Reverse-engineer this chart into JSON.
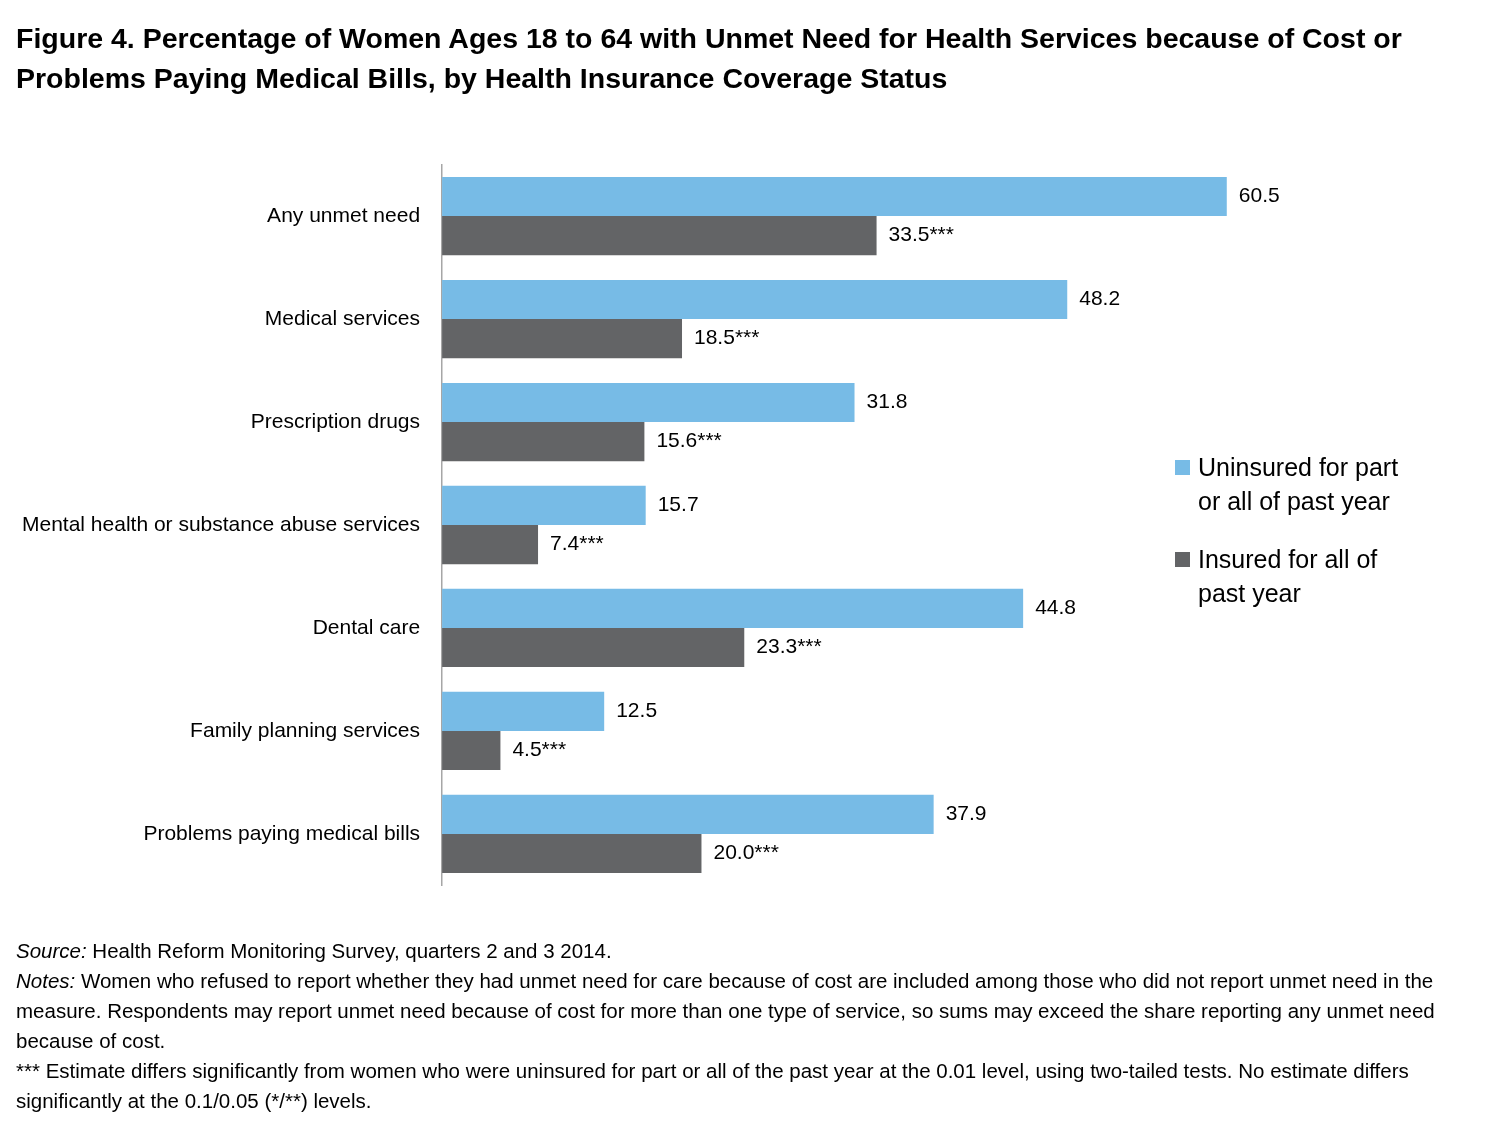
{
  "chart_data": {
    "type": "bar",
    "orientation": "horizontal",
    "title": "Figure 4. Percentage of Women Ages 18 to 64 with Unmet Need for Health Services because of Cost or Problems Paying Medical Bills, by Health Insurance Coverage Status",
    "categories": [
      "Any unmet need",
      "Medical services",
      "Prescription drugs",
      "Mental health or substance abuse services",
      "Dental care",
      "Family planning services",
      "Problems paying medical bills"
    ],
    "series": [
      {
        "name": "Uninsured for part or all of past year",
        "color": "#77bbe6",
        "values": [
          60.5,
          48.2,
          31.8,
          15.7,
          44.8,
          12.5,
          37.9
        ],
        "value_labels": [
          "60.5",
          "48.2",
          "31.8",
          "15.7",
          "44.8",
          "12.5",
          "37.9"
        ]
      },
      {
        "name": "Insured for all of past year",
        "color": "#636466",
        "values": [
          33.5,
          18.5,
          15.6,
          7.4,
          23.3,
          4.5,
          20.0
        ],
        "value_labels": [
          "33.5***",
          "18.5***",
          "15.6***",
          "7.4***",
          "23.3***",
          "4.5***",
          "20.0***"
        ]
      }
    ],
    "tick_labels": "y",
    "legend": "right",
    "annotations": [
      "Source: Health Reform Monitoring Survey, quarters 2 and 3 2014.",
      "Notes: Women who refused to report whether they had unmet need for care because of cost are included among those who did not report unmet need in the measure. Respondents may report unmet need because of cost for more than one type of service, so sums may exceed the share reporting any unmet need because of cost.",
      "*** Estimate differs significantly from women who were uninsured for part or all of the past year at the 0.01 level, using two-tailed tests. No estimate differs significantly at the 0.1/0.05 (*/**) levels."
    ]
  }
}
